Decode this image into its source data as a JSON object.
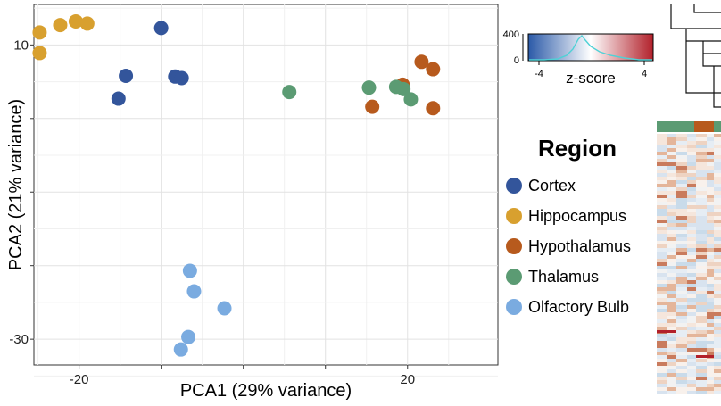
{
  "chart_data": {
    "type": "scatter",
    "title": "",
    "xlabel": "PCA1 (29% variance)",
    "ylabel": "PCA2 (21% variance)",
    "xlim": [
      -25.5,
      31
    ],
    "ylim": [
      -33.5,
      15.5
    ],
    "x_ticks": [
      -20,
      -10,
      0,
      10,
      20
    ],
    "x_tick_labels": [
      "-20",
      "",
      "",
      "",
      "20"
    ],
    "y_ticks": [
      10,
      0,
      -10,
      -20,
      -30
    ],
    "y_tick_labels": [
      "10",
      "",
      "",
      "",
      "-30"
    ],
    "grid": true,
    "legend_position": "right",
    "series": [
      {
        "name": "Cortex",
        "color": "#33559b",
        "points": [
          [
            -10,
            12.3
          ],
          [
            -14.3,
            5.8
          ],
          [
            -15.2,
            2.7
          ],
          [
            -8.3,
            5.7
          ],
          [
            -7.5,
            5.5
          ]
        ]
      },
      {
        "name": "Hippocampus",
        "color": "#d8a02f",
        "points": [
          [
            -24.8,
            11.7
          ],
          [
            -24.8,
            8.9
          ],
          [
            -22.3,
            12.7
          ],
          [
            -20.4,
            13.2
          ],
          [
            -19,
            12.9
          ]
        ]
      },
      {
        "name": "Hypothalamus",
        "color": "#b75a1d",
        "points": [
          [
            19.4,
            4.6
          ],
          [
            21.7,
            7.7
          ],
          [
            23.1,
            6.7
          ],
          [
            23.1,
            1.4
          ],
          [
            15.7,
            1.6
          ]
        ]
      },
      {
        "name": "Thalamus",
        "color": "#5b9b73",
        "points": [
          [
            5.6,
            3.6
          ],
          [
            15.3,
            4.2
          ],
          [
            18.6,
            4.3
          ],
          [
            19.5,
            4
          ],
          [
            20.4,
            2.6
          ]
        ]
      },
      {
        "name": "Olfactory Bulb",
        "color": "#7aabe0",
        "points": [
          [
            -6.5,
            -20.7
          ],
          [
            -6,
            -23.5
          ],
          [
            -2.3,
            -25.8
          ],
          [
            -6.7,
            -29.7
          ],
          [
            -7.6,
            -31.4
          ]
        ]
      }
    ]
  },
  "legend": {
    "title": "Region",
    "items": [
      {
        "label": "Cortex",
        "color": "#33559b"
      },
      {
        "label": "Hippocampus",
        "color": "#d8a02f"
      },
      {
        "label": "Hypothalamus",
        "color": "#b75a1d"
      },
      {
        "label": "Thalamus",
        "color": "#5b9b73"
      },
      {
        "label": "Olfactory Bulb",
        "color": "#7aabe0"
      }
    ]
  },
  "colorbar": {
    "title": "z-score",
    "x_ticks": [
      "-4",
      "4"
    ],
    "y_ticks": [
      "400",
      "0"
    ],
    "colors": [
      "#2b5aa8",
      "#ffffff",
      "#b2202a"
    ],
    "density_color": "#4fd1d6"
  },
  "heatmap": {
    "group_colors": [
      "#5b9b73",
      "#5b9b73",
      "#b75a1d",
      "#5b9b73"
    ]
  }
}
